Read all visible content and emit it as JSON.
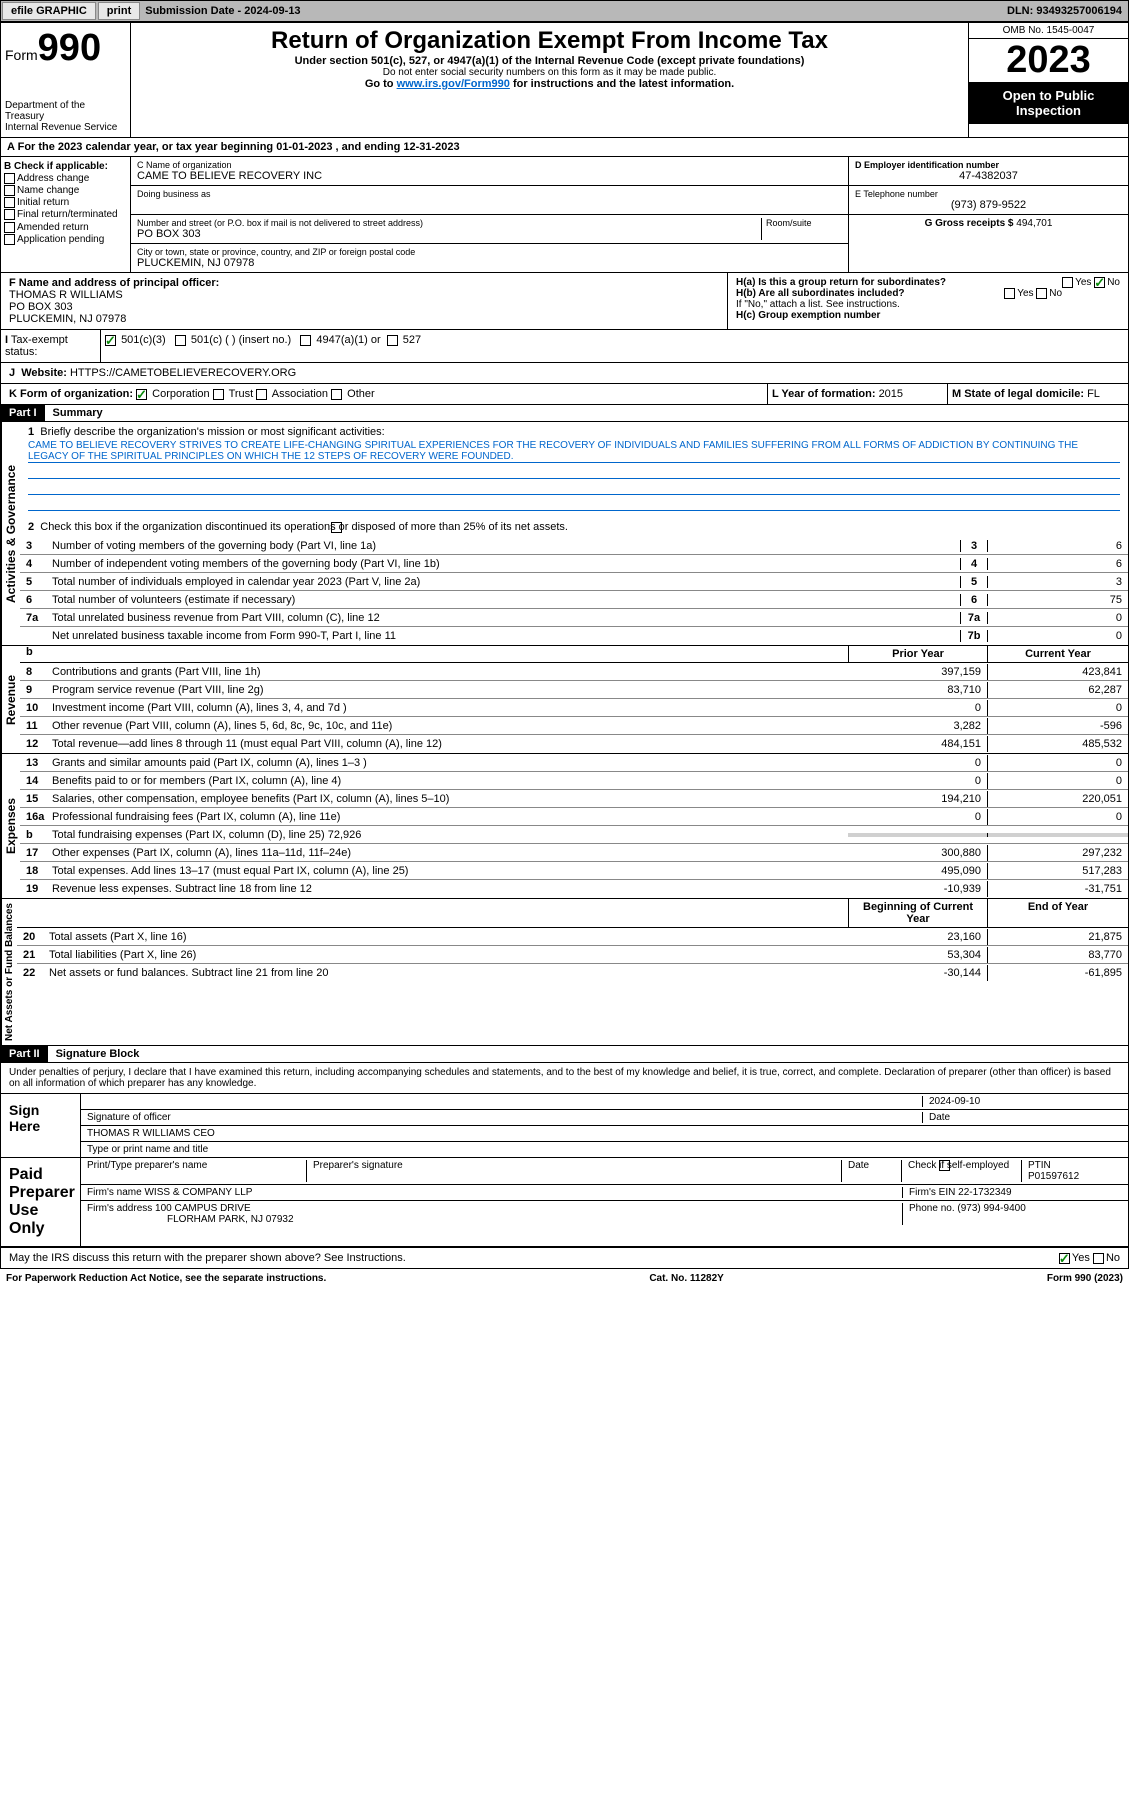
{
  "topbar": {
    "efile": "efile GRAPHIC",
    "print": "print",
    "sub_label": "Submission Date - ",
    "sub_date": "2024-09-13",
    "dln_label": "DLN: ",
    "dln": "93493257006194"
  },
  "header": {
    "form_label": "Form",
    "form_num": "990",
    "title": "Return of Organization Exempt From Income Tax",
    "subtitle": "Under section 501(c), 527, or 4947(a)(1) of the Internal Revenue Code (except private foundations)",
    "ssn_note": "Do not enter social security numbers on this form as it may be made public.",
    "goto": "Go to ",
    "goto_link": "www.irs.gov/Form990",
    "goto_rest": " for instructions and the latest information.",
    "dept": "Department of the Treasury",
    "irs": "Internal Revenue Service",
    "omb": "OMB No. 1545-0047",
    "year": "2023",
    "open": "Open to Public Inspection"
  },
  "tax_year": "For the 2023 calendar year, or tax year beginning 01-01-2023   , and ending 12-31-2023",
  "section_b": {
    "label": "B Check if applicable:",
    "items": [
      "Address change",
      "Name change",
      "Initial return",
      "Final return/terminated",
      "Amended return",
      "Application pending"
    ]
  },
  "section_c": {
    "name_label": "C Name of organization",
    "name": "CAME TO BELIEVE RECOVERY INC",
    "dba_label": "Doing business as",
    "addr_label": "Number and street (or P.O. box if mail is not delivered to street address)",
    "room_label": "Room/suite",
    "addr": "PO BOX 303",
    "city_label": "City or town, state or province, country, and ZIP or foreign postal code",
    "city": "PLUCKEMIN, NJ  07978"
  },
  "section_d": {
    "ein_label": "D Employer identification number",
    "ein": "47-4382037",
    "phone_label": "E Telephone number",
    "phone": "(973) 879-9522",
    "gross_label": "G Gross receipts $ ",
    "gross": "494,701"
  },
  "section_f": {
    "label": "F  Name and address of principal officer:",
    "name": "THOMAS R WILLIAMS",
    "addr1": "PO BOX 303",
    "addr2": "PLUCKEMIN, NJ  07978"
  },
  "section_h": {
    "ha": "H(a)  Is this a group return for subordinates?",
    "hb": "H(b)  Are all subordinates included?",
    "hb_note": "If \"No,\" attach a list. See instructions.",
    "hc": "H(c)  Group exemption number ",
    "yes": "Yes",
    "no": "No"
  },
  "section_i": {
    "label": "Tax-exempt status:",
    "opt1": "501(c)(3)",
    "opt2": "501(c) (  ) (insert no.)",
    "opt3": "4947(a)(1) or",
    "opt4": "527"
  },
  "section_j": {
    "label": "Website: ",
    "url": "HTTPS://CAMETOBELIEVERECOVERY.ORG"
  },
  "section_k": {
    "label": "K Form of organization:",
    "opts": [
      "Corporation",
      "Trust",
      "Association",
      "Other"
    ]
  },
  "section_l": {
    "label": "L Year of formation: ",
    "val": "2015"
  },
  "section_m": {
    "label": "M State of legal domicile: ",
    "val": "FL"
  },
  "part1": {
    "header": "Part I",
    "title": "Summary",
    "q1": "Briefly describe the organization's mission or most significant activities:",
    "mission": "CAME TO BELIEVE RECOVERY STRIVES TO CREATE LIFE-CHANGING SPIRITUAL EXPERIENCES FOR THE RECOVERY OF INDIVIDUALS AND FAMILIES SUFFERING FROM ALL FORMS OF ADDICTION BY CONTINUING THE LEGACY OF THE SPIRITUAL PRINCIPLES ON WHICH THE 12 STEPS OF RECOVERY WERE FOUNDED.",
    "q2": "Check this box      if the organization discontinued its operations or disposed of more than 25% of its net assets.",
    "governance_label": "Activities & Governance",
    "revenue_label": "Revenue",
    "expenses_label": "Expenses",
    "netassets_label": "Net Assets or Fund Balances",
    "rows_gov": [
      {
        "n": "3",
        "d": "Number of voting members of the governing body (Part VI, line 1a)",
        "nb": "3",
        "v": "6"
      },
      {
        "n": "4",
        "d": "Number of independent voting members of the governing body (Part VI, line 1b)",
        "nb": "4",
        "v": "6"
      },
      {
        "n": "5",
        "d": "Total number of individuals employed in calendar year 2023 (Part V, line 2a)",
        "nb": "5",
        "v": "3"
      },
      {
        "n": "6",
        "d": "Total number of volunteers (estimate if necessary)",
        "nb": "6",
        "v": "75"
      },
      {
        "n": "7a",
        "d": "Total unrelated business revenue from Part VIII, column (C), line 12",
        "nb": "7a",
        "v": "0"
      },
      {
        "n": "",
        "d": "Net unrelated business taxable income from Form 990-T, Part I, line 11",
        "nb": "7b",
        "v": "0"
      }
    ],
    "hdr_prior": "Prior Year",
    "hdr_current": "Current Year",
    "hdr_boy": "Beginning of Current Year",
    "hdr_eoy": "End of Year",
    "rows_rev": [
      {
        "n": "8",
        "d": "Contributions and grants (Part VIII, line 1h)",
        "v1": "397,159",
        "v2": "423,841"
      },
      {
        "n": "9",
        "d": "Program service revenue (Part VIII, line 2g)",
        "v1": "83,710",
        "v2": "62,287"
      },
      {
        "n": "10",
        "d": "Investment income (Part VIII, column (A), lines 3, 4, and 7d )",
        "v1": "0",
        "v2": "0"
      },
      {
        "n": "11",
        "d": "Other revenue (Part VIII, column (A), lines 5, 6d, 8c, 9c, 10c, and 11e)",
        "v1": "3,282",
        "v2": "-596"
      },
      {
        "n": "12",
        "d": "Total revenue—add lines 8 through 11 (must equal Part VIII, column (A), line 12)",
        "v1": "484,151",
        "v2": "485,532"
      }
    ],
    "rows_exp": [
      {
        "n": "13",
        "d": "Grants and similar amounts paid (Part IX, column (A), lines 1–3 )",
        "v1": "0",
        "v2": "0"
      },
      {
        "n": "14",
        "d": "Benefits paid to or for members (Part IX, column (A), line 4)",
        "v1": "0",
        "v2": "0"
      },
      {
        "n": "15",
        "d": "Salaries, other compensation, employee benefits (Part IX, column (A), lines 5–10)",
        "v1": "194,210",
        "v2": "220,051"
      },
      {
        "n": "16a",
        "d": "Professional fundraising fees (Part IX, column (A), line 11e)",
        "v1": "0",
        "v2": "0"
      },
      {
        "n": "b",
        "d": "Total fundraising expenses (Part IX, column (D), line 25) 72,926",
        "v1": "",
        "v2": "",
        "shaded": true
      },
      {
        "n": "17",
        "d": "Other expenses (Part IX, column (A), lines 11a–11d, 11f–24e)",
        "v1": "300,880",
        "v2": "297,232"
      },
      {
        "n": "18",
        "d": "Total expenses. Add lines 13–17 (must equal Part IX, column (A), line 25)",
        "v1": "495,090",
        "v2": "517,283"
      },
      {
        "n": "19",
        "d": "Revenue less expenses. Subtract line 18 from line 12",
        "v1": "-10,939",
        "v2": "-31,751"
      }
    ],
    "rows_net": [
      {
        "n": "20",
        "d": "Total assets (Part X, line 16)",
        "v1": "23,160",
        "v2": "21,875"
      },
      {
        "n": "21",
        "d": "Total liabilities (Part X, line 26)",
        "v1": "53,304",
        "v2": "83,770"
      },
      {
        "n": "22",
        "d": "Net assets or fund balances. Subtract line 21 from line 20",
        "v1": "-30,144",
        "v2": "-61,895"
      }
    ]
  },
  "part2": {
    "header": "Part II",
    "title": "Signature Block",
    "penalties": "Under penalties of perjury, I declare that I have examined this return, including accompanying schedules and statements, and to the best of my knowledge and belief, it is true, correct, and complete. Declaration of preparer (other than officer) is based on all information of which preparer has any knowledge.",
    "sign_here": "Sign Here",
    "sig_officer": "Signature of officer",
    "sig_name": "THOMAS R WILLIAMS  CEO",
    "sig_date_label": "Date",
    "sig_date": "2024-09-10",
    "type_name": "Type or print name and title",
    "paid": "Paid Preparer Use Only",
    "prep_name_label": "Print/Type preparer's name",
    "prep_sig_label": "Preparer's signature",
    "date_label": "Date",
    "check_self": "Check        if self-employed",
    "ptin_label": "PTIN",
    "ptin": "P01597612",
    "firm_name_label": "Firm's name    ",
    "firm_name": "WISS & COMPANY LLP",
    "firm_ein_label": "Firm's EIN  ",
    "firm_ein": "22-1732349",
    "firm_addr_label": "Firm's address ",
    "firm_addr1": "100 CAMPUS DRIVE",
    "firm_addr2": "FLORHAM PARK, NJ  07932",
    "phone_label": "Phone no. ",
    "phone": "(973) 994-9400",
    "discuss": "May the IRS discuss this return with the preparer shown above? See Instructions."
  },
  "footer": {
    "paperwork": "For Paperwork Reduction Act Notice, see the separate instructions.",
    "cat": "Cat. No. 11282Y",
    "form": "Form 990 (2023)"
  }
}
